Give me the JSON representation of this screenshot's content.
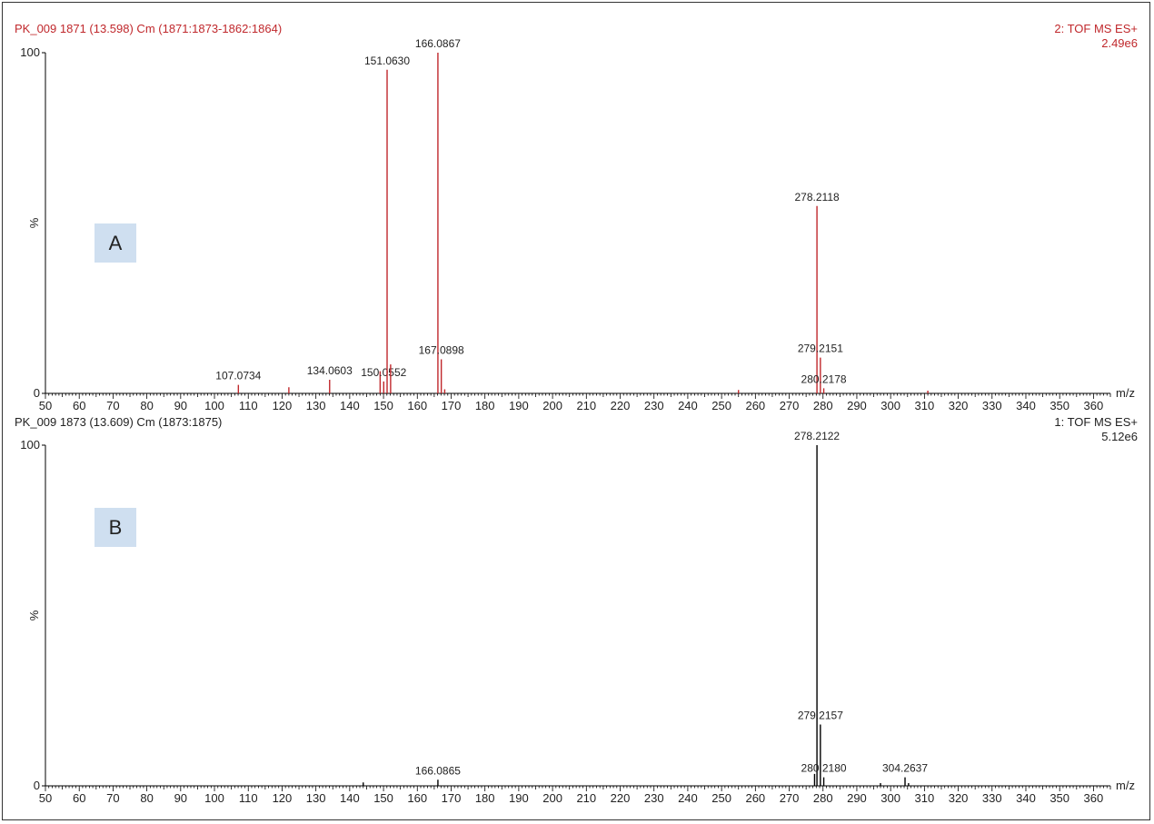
{
  "colors": {
    "panel_a": "#c0282c",
    "panel_b": "#000000",
    "label_box": "#cfdff0"
  },
  "panel_a": {
    "header_left": "PK_009 1871 (13.598) Cm (1871:1873-1862:1864)",
    "header_right_1": "2: TOF MS ES+",
    "header_right_2": "2.49e6",
    "label": "A"
  },
  "panel_b": {
    "header_left": "PK_009 1873 (13.609) Cm (1873:1875)",
    "header_right_1": "1: TOF MS ES+",
    "header_right_2": "5.12e6",
    "label": "B"
  },
  "chart_data": [
    {
      "type": "bar",
      "title": "PK_009 1871 (13.598) Cm (1871:1873-1862:1864)",
      "xlabel": "m/z",
      "ylabel": "%",
      "xlim": [
        50,
        365
      ],
      "ylim": [
        0,
        100
      ],
      "x_ticks": [
        50,
        60,
        70,
        80,
        90,
        100,
        110,
        120,
        130,
        140,
        150,
        160,
        170,
        180,
        190,
        200,
        210,
        220,
        230,
        240,
        250,
        260,
        270,
        280,
        290,
        300,
        310,
        320,
        330,
        340,
        350,
        360
      ],
      "y_ticks": [
        0,
        100
      ],
      "peaks": [
        {
          "mz": 107.07,
          "rel": 2.5,
          "label": "107.0734"
        },
        {
          "mz": 122.0,
          "rel": 1.8,
          "label": ""
        },
        {
          "mz": 134.06,
          "rel": 4.0,
          "label": "134.0603"
        },
        {
          "mz": 149.0,
          "rel": 6.5,
          "label": ""
        },
        {
          "mz": 150.06,
          "rel": 3.5,
          "label": "150.0552"
        },
        {
          "mz": 151.06,
          "rel": 95,
          "label": "151.0630"
        },
        {
          "mz": 152.1,
          "rel": 8.5,
          "label": ""
        },
        {
          "mz": 166.09,
          "rel": 100,
          "label": "166.0867"
        },
        {
          "mz": 167.09,
          "rel": 10,
          "label": "167.0898"
        },
        {
          "mz": 168.1,
          "rel": 1.2,
          "label": ""
        },
        {
          "mz": 255.0,
          "rel": 1.0,
          "label": ""
        },
        {
          "mz": 278.21,
          "rel": 55,
          "label": "278.2118"
        },
        {
          "mz": 279.22,
          "rel": 10.5,
          "label": "279.2151"
        },
        {
          "mz": 280.22,
          "rel": 1.5,
          "label": "280.2178"
        },
        {
          "mz": 311.0,
          "rel": 0.8,
          "label": ""
        }
      ]
    },
    {
      "type": "bar",
      "title": "PK_009 1873 (13.609) Cm (1873:1875)",
      "xlabel": "m/z",
      "ylabel": "%",
      "xlim": [
        50,
        365
      ],
      "ylim": [
        0,
        100
      ],
      "x_ticks": [
        50,
        60,
        70,
        80,
        90,
        100,
        110,
        120,
        130,
        140,
        150,
        160,
        170,
        180,
        190,
        200,
        210,
        220,
        230,
        240,
        250,
        260,
        270,
        280,
        290,
        300,
        310,
        320,
        330,
        340,
        350,
        360
      ],
      "y_ticks": [
        0,
        100
      ],
      "peaks": [
        {
          "mz": 144.0,
          "rel": 1.0,
          "label": ""
        },
        {
          "mz": 166.09,
          "rel": 1.8,
          "label": "166.0865"
        },
        {
          "mz": 277.5,
          "rel": 3.5,
          "label": ""
        },
        {
          "mz": 278.21,
          "rel": 100,
          "label": "278.2122"
        },
        {
          "mz": 279.22,
          "rel": 18,
          "label": "279.2157"
        },
        {
          "mz": 280.22,
          "rel": 2.5,
          "label": "280.2180"
        },
        {
          "mz": 297.0,
          "rel": 0.8,
          "label": ""
        },
        {
          "mz": 304.26,
          "rel": 2.5,
          "label": "304.2637"
        },
        {
          "mz": 305.3,
          "rel": 0.8,
          "label": ""
        }
      ]
    }
  ]
}
